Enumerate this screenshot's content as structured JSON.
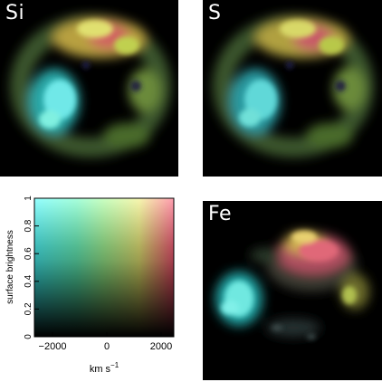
{
  "panels": [
    {
      "id": "si",
      "label": "Si"
    },
    {
      "id": "s",
      "label": "S"
    },
    {
      "id": "fe",
      "label": "Fe"
    }
  ],
  "colorkey": {
    "ylabel": "surface brightness",
    "xlabel": "km s",
    "xlabel_exponent": "−1",
    "yticks": [
      "0",
      "0.2",
      "0.4",
      "0.6",
      "0.8",
      "1"
    ],
    "xticks": [
      "−2000",
      "0",
      "2000"
    ]
  },
  "colors": {
    "blueshift": "#3fffff",
    "zero": "#8fff8f",
    "redshift": "#ff5060",
    "background": "#000000"
  }
}
